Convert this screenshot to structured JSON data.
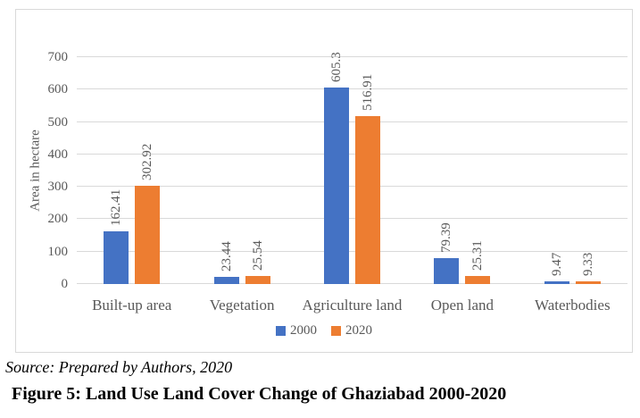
{
  "page": {
    "source_note": "Source: Prepared by Authors, 2020",
    "caption": "Figure 5: Land Use Land Cover Change of Ghaziabad 2000-2020"
  },
  "chart_data": {
    "type": "bar",
    "title": "",
    "categories": [
      "Built-up area",
      "Vegetation",
      "Agriculture land",
      "Open land",
      "Waterbodies"
    ],
    "series": [
      {
        "name": "2000",
        "color": "#4472C4",
        "values": [
          162.41,
          23.44,
          605.3,
          79.39,
          9.47
        ]
      },
      {
        "name": "2020",
        "color": "#ED7D31",
        "values": [
          302.92,
          25.54,
          516.91,
          25.31,
          9.33
        ]
      }
    ],
    "xlabel": "",
    "ylabel": "Area in hectare",
    "ylim": [
      0,
      700
    ],
    "ytick_step": 100,
    "grid": true,
    "legend_position": "bottom",
    "value_labels_rotated": true,
    "colors": {
      "grid": "#D9D9D9",
      "border": "#D9D9D9",
      "axis_text": "#595959"
    }
  }
}
